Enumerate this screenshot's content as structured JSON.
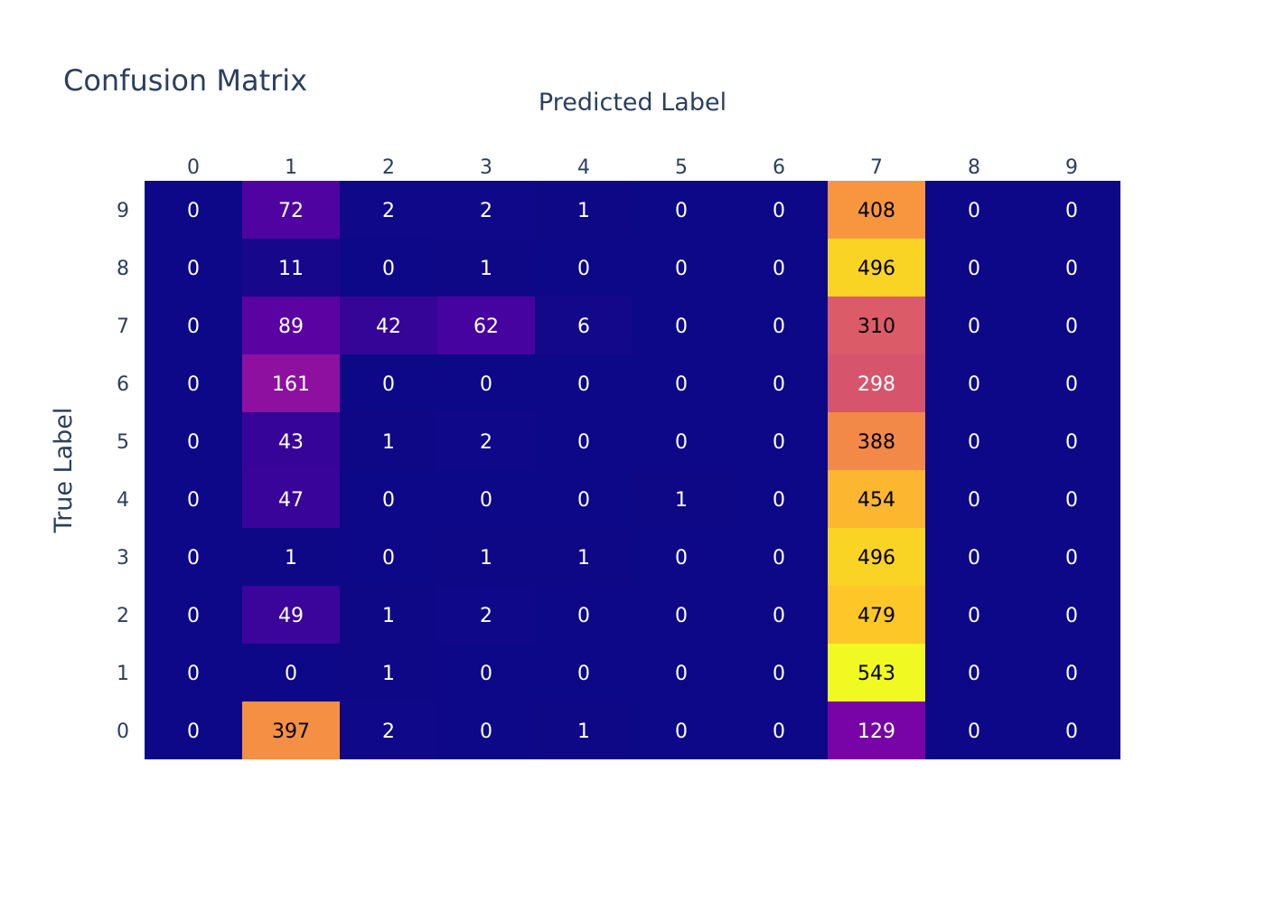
{
  "chart_data": {
    "type": "heatmap",
    "title": "Confusion Matrix",
    "xlabel": "Predicted Label",
    "ylabel": "True Label",
    "x_categories": [
      "0",
      "1",
      "2",
      "3",
      "4",
      "5",
      "6",
      "7",
      "8",
      "9"
    ],
    "y_categories": [
      "0",
      "1",
      "2",
      "3",
      "4",
      "5",
      "6",
      "7",
      "8",
      "9"
    ],
    "x_axis_position": "top",
    "colorscale": "Plasma",
    "colorscale_colors": [
      "#0d0887",
      "#46039f",
      "#7201a8",
      "#9c179e",
      "#bd3786",
      "#d8576b",
      "#ed7953",
      "#fb9f3a",
      "#fdca26",
      "#f0f921"
    ],
    "zmin": 0,
    "zmax": 543,
    "values": [
      [
        0,
        397,
        2,
        0,
        1,
        0,
        0,
        129,
        0,
        0
      ],
      [
        0,
        0,
        1,
        0,
        0,
        0,
        0,
        543,
        0,
        0
      ],
      [
        0,
        49,
        1,
        2,
        0,
        0,
        0,
        479,
        0,
        0
      ],
      [
        0,
        1,
        0,
        1,
        1,
        0,
        0,
        496,
        0,
        0
      ],
      [
        0,
        47,
        0,
        0,
        0,
        1,
        0,
        454,
        0,
        0
      ],
      [
        0,
        43,
        1,
        2,
        0,
        0,
        0,
        388,
        0,
        0
      ],
      [
        0,
        161,
        0,
        0,
        0,
        0,
        0,
        298,
        0,
        0
      ],
      [
        0,
        89,
        42,
        62,
        6,
        0,
        0,
        310,
        0,
        0
      ],
      [
        0,
        11,
        0,
        1,
        0,
        0,
        0,
        496,
        0,
        0
      ],
      [
        0,
        72,
        2,
        2,
        1,
        0,
        0,
        408,
        0,
        0
      ]
    ],
    "legend": "none",
    "grid": false
  }
}
